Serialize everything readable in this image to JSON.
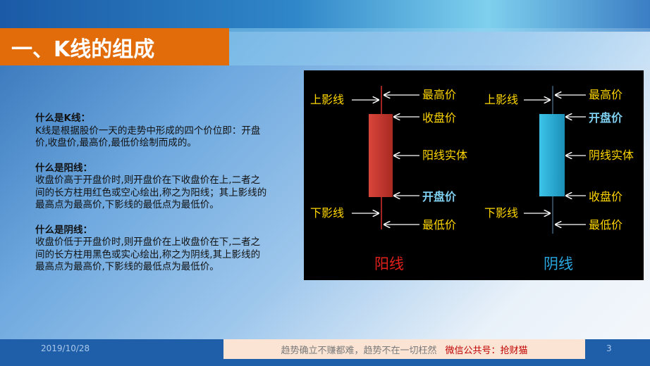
{
  "title": "一、K线的组成",
  "sections": [
    {
      "heading": "什么是K线：",
      "body": "K线是根据股价一天的走势中形成的四个价位即：开盘价,收盘价,最高价,最低价绘制而成的。"
    },
    {
      "heading": "什么是阳线：",
      "body": "收盘价高于开盘价时,则开盘价在下收盘价在上,二者之间的长方柱用红色或空心绘出,称之为阳线；其上影线的最高点为最高价,下影线的最低点为最低价。"
    },
    {
      "heading": "什么是阴线：",
      "body": "收盘价低于开盘价时,则开盘价在上收盘价在下,二者之间的长方柱用黑色或实心绘出,称之为阴线,其上影线的最高点为最高价,下影线的最低点为最低价。"
    }
  ],
  "diagram": {
    "yang": {
      "upper_shadow": "上影线",
      "lower_shadow": "下影线",
      "high": "最高价",
      "close": "收盘价",
      "body": "阳线实体",
      "open": "开盘价",
      "low": "最低价",
      "name": "阳线",
      "body_color": "#c0362c",
      "name_color": "#e0201a"
    },
    "yin": {
      "upper_shadow": "上影线",
      "lower_shadow": "下影线",
      "high": "最高价",
      "open": "开盘价",
      "body": "阴线实体",
      "close": "收盘价",
      "low": "最低价",
      "name": "阴线",
      "body_color": "#2ab0d6",
      "name_color": "#29a8e0"
    },
    "label_color": "#ffd700",
    "highlight_color": "#7fd0f0"
  },
  "footer": {
    "date": "2019/10/28",
    "slogan": "趋势确立不赚都难，趋势不在一切枉然",
    "wechat": "微信公共号：抢财猫",
    "page": "3"
  }
}
